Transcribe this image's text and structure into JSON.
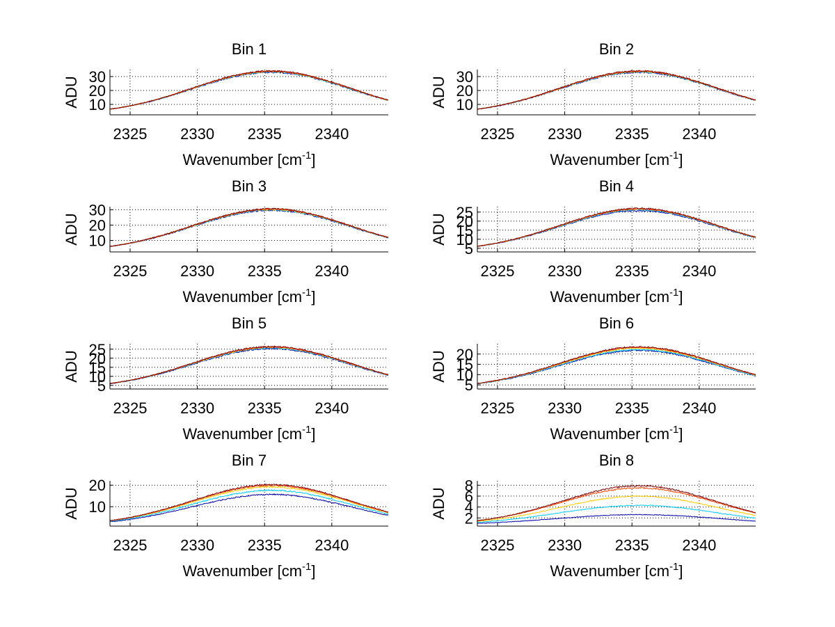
{
  "figure": {
    "background": "#ffffff"
  },
  "chart_data": [
    {
      "type": "line",
      "title": "Bin 1",
      "xlabel": "Wavenumber [cm",
      "xlabel_sup": "-1",
      "xlabel_end": "]",
      "ylabel": "ADU",
      "xlim": [
        2323.5,
        2344.2
      ],
      "ylim": [
        2.5,
        35
      ],
      "xticks": [
        2325,
        2330,
        2335,
        2340
      ],
      "yticks": [
        10,
        20,
        30
      ],
      "series": [
        {
          "name": "s1",
          "color": "#0000AA",
          "peak": 33.0,
          "width": 8.3
        },
        {
          "name": "s2",
          "color": "#00CCFF",
          "peak": 33.3,
          "width": 8.3
        },
        {
          "name": "s3",
          "color": "#FFCC00",
          "peak": 33.6,
          "width": 8.3
        },
        {
          "name": "s4",
          "color": "#FF4400",
          "peak": 33.8,
          "width": 8.3
        },
        {
          "name": "s5",
          "color": "#800000",
          "peak": 34.0,
          "width": 8.3
        }
      ]
    },
    {
      "type": "line",
      "title": "Bin 2",
      "xlabel": "Wavenumber [cm",
      "xlabel_sup": "-1",
      "xlabel_end": "]",
      "ylabel": "ADU",
      "xlim": [
        2323.5,
        2344.2
      ],
      "ylim": [
        2.5,
        35
      ],
      "xticks": [
        2325,
        2330,
        2335,
        2340
      ],
      "yticks": [
        10,
        20,
        30
      ],
      "series": [
        {
          "name": "s1",
          "color": "#0000AA",
          "peak": 33.0,
          "width": 8.3
        },
        {
          "name": "s2",
          "color": "#00CCFF",
          "peak": 33.3,
          "width": 8.3
        },
        {
          "name": "s3",
          "color": "#FFCC00",
          "peak": 33.6,
          "width": 8.3
        },
        {
          "name": "s4",
          "color": "#FF4400",
          "peak": 33.8,
          "width": 8.3
        },
        {
          "name": "s5",
          "color": "#800000",
          "peak": 34.0,
          "width": 8.3
        }
      ]
    },
    {
      "type": "line",
      "title": "Bin 3",
      "xlabel": "Wavenumber [cm",
      "xlabel_sup": "-1",
      "xlabel_end": "]",
      "ylabel": "ADU",
      "xlim": [
        2323.5,
        2344.2
      ],
      "ylim": [
        2.5,
        32
      ],
      "xticks": [
        2325,
        2330,
        2335,
        2340
      ],
      "yticks": [
        10,
        20,
        30
      ],
      "series": [
        {
          "name": "s1",
          "color": "#0000AA",
          "peak": 29.6,
          "width": 8.3
        },
        {
          "name": "s2",
          "color": "#00CCFF",
          "peak": 29.9,
          "width": 8.3
        },
        {
          "name": "s3",
          "color": "#FFCC00",
          "peak": 30.2,
          "width": 8.3
        },
        {
          "name": "s4",
          "color": "#FF4400",
          "peak": 30.4,
          "width": 8.3
        },
        {
          "name": "s5",
          "color": "#800000",
          "peak": 30.6,
          "width": 8.3
        }
      ]
    },
    {
      "type": "line",
      "title": "Bin 4",
      "xlabel": "Wavenumber [cm",
      "xlabel_sup": "-1",
      "xlabel_end": "]",
      "ylabel": "ADU",
      "xlim": [
        2323.5,
        2344.2
      ],
      "ylim": [
        3,
        28
      ],
      "xticks": [
        2325,
        2330,
        2335,
        2340
      ],
      "yticks": [
        5,
        10,
        15,
        20,
        25
      ],
      "series": [
        {
          "name": "s1",
          "color": "#0000AA",
          "peak": 25.9,
          "width": 8.3
        },
        {
          "name": "s2",
          "color": "#00CCFF",
          "peak": 26.3,
          "width": 8.3
        },
        {
          "name": "s3",
          "color": "#FFCC00",
          "peak": 26.6,
          "width": 8.3
        },
        {
          "name": "s4",
          "color": "#FF4400",
          "peak": 26.8,
          "width": 8.3
        },
        {
          "name": "s5",
          "color": "#800000",
          "peak": 27.0,
          "width": 8.3
        }
      ]
    },
    {
      "type": "line",
      "title": "Bin 5",
      "xlabel": "Wavenumber [cm",
      "xlabel_sup": "-1",
      "xlabel_end": "]",
      "ylabel": "ADU",
      "xlim": [
        2323.5,
        2344.2
      ],
      "ylim": [
        3,
        28
      ],
      "xticks": [
        2325,
        2330,
        2335,
        2340
      ],
      "yticks": [
        5,
        10,
        15,
        20,
        25
      ],
      "series": [
        {
          "name": "s1",
          "color": "#0000AA",
          "peak": 25.3,
          "width": 8.3
        },
        {
          "name": "s2",
          "color": "#00CCFF",
          "peak": 25.7,
          "width": 8.3
        },
        {
          "name": "s3",
          "color": "#FFCC00",
          "peak": 26.0,
          "width": 8.3
        },
        {
          "name": "s4",
          "color": "#FF4400",
          "peak": 26.2,
          "width": 8.3
        },
        {
          "name": "s5",
          "color": "#800000",
          "peak": 26.4,
          "width": 8.3
        }
      ]
    },
    {
      "type": "line",
      "title": "Bin 6",
      "xlabel": "Wavenumber [cm",
      "xlabel_sup": "-1",
      "xlabel_end": "]",
      "ylabel": "ADU",
      "xlim": [
        2323.5,
        2344.2
      ],
      "ylim": [
        3,
        25
      ],
      "xticks": [
        2325,
        2330,
        2335,
        2340
      ],
      "yticks": [
        5,
        10,
        15,
        20
      ],
      "series": [
        {
          "name": "s1",
          "color": "#0000AA",
          "peak": 21.8,
          "width": 8.3
        },
        {
          "name": "s2",
          "color": "#00CCFF",
          "peak": 22.2,
          "width": 8.3
        },
        {
          "name": "s3",
          "color": "#FFCC00",
          "peak": 22.8,
          "width": 8.3
        },
        {
          "name": "s4",
          "color": "#FF4400",
          "peak": 23.2,
          "width": 8.3
        },
        {
          "name": "s5",
          "color": "#800000",
          "peak": 23.5,
          "width": 8.3
        }
      ]
    },
    {
      "type": "line",
      "title": "Bin 7",
      "xlabel": "Wavenumber [cm",
      "xlabel_sup": "-1",
      "xlabel_end": "]",
      "ylabel": "ADU",
      "xlim": [
        2323.5,
        2344.2
      ],
      "ylim": [
        1,
        22
      ],
      "xticks": [
        2325,
        2330,
        2335,
        2340
      ],
      "yticks": [
        10,
        20
      ],
      "series": [
        {
          "name": "s1",
          "color": "#0000AA",
          "peak": 15.7,
          "width": 8.3
        },
        {
          "name": "s2",
          "color": "#00CCFF",
          "peak": 17.6,
          "width": 8.3
        },
        {
          "name": "s3",
          "color": "#FFCC00",
          "peak": 19.2,
          "width": 8.3
        },
        {
          "name": "s4",
          "color": "#FF4400",
          "peak": 19.9,
          "width": 8.3
        },
        {
          "name": "s5",
          "color": "#800000",
          "peak": 20.3,
          "width": 8.3
        }
      ]
    },
    {
      "type": "line",
      "title": "Bin 8",
      "xlabel": "Wavenumber [cm",
      "xlabel_sup": "-1",
      "xlabel_end": "]",
      "ylabel": "ADU",
      "xlim": [
        2323.5,
        2344.2
      ],
      "ylim": [
        0.5,
        8.8
      ],
      "xticks": [
        2325,
        2330,
        2335,
        2340
      ],
      "yticks": [
        2,
        4,
        6,
        8
      ],
      "series": [
        {
          "name": "s1",
          "color": "#0000AA",
          "peak": 2.6,
          "width": 8.8
        },
        {
          "name": "s2",
          "color": "#00CCFF",
          "peak": 4.3,
          "width": 8.5
        },
        {
          "name": "s3",
          "color": "#FFCC00",
          "peak": 6.0,
          "width": 8.3
        },
        {
          "name": "s4",
          "color": "#FF4400",
          "peak": 7.5,
          "width": 8.2
        },
        {
          "name": "s5",
          "color": "#800000",
          "peak": 7.9,
          "width": 8.1
        }
      ]
    }
  ]
}
